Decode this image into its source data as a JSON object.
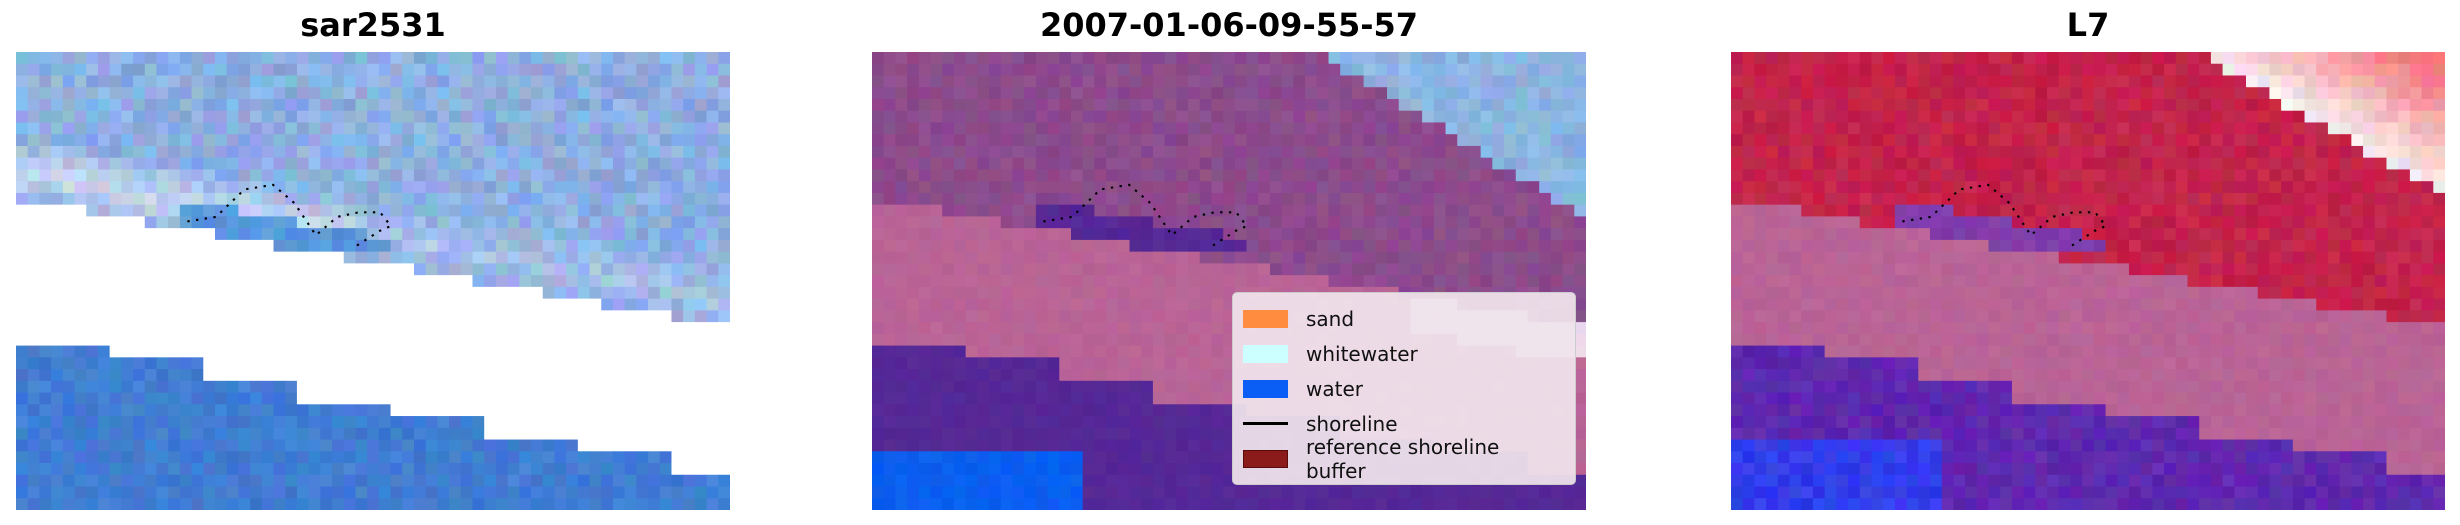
{
  "panels": [
    {
      "title": "sar2531"
    },
    {
      "title": "2007-01-06-09-55-57"
    },
    {
      "title": "L7"
    }
  ],
  "legend": {
    "items": [
      {
        "label": "sand",
        "color": "#ff8c3f",
        "kind": "patch"
      },
      {
        "label": "whitewater",
        "color": "#ccffff",
        "kind": "patch"
      },
      {
        "label": "water",
        "color": "#0a5ef5",
        "kind": "patch"
      },
      {
        "label": "shoreline",
        "color": "#000000",
        "kind": "line"
      },
      {
        "label": "reference shoreline buffer",
        "color": "#8b1a1a",
        "kind": "patch"
      }
    ]
  }
}
